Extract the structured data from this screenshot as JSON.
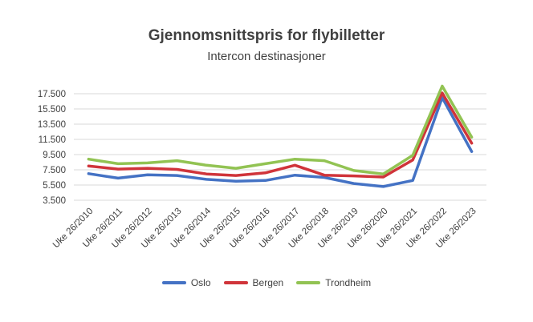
{
  "chart_data": {
    "type": "line",
    "title": "Gjennomsnittspris for flybilletter",
    "subtitle": "Intercon destinasjoner",
    "categories": [
      "Uke 26/2010",
      "Uke 26/2011",
      "Uke 26/2012",
      "Uke 26/2013",
      "Uke 26/2014",
      "Uke 26/2015",
      "Uke 26/2016",
      "Uke 26/2017",
      "Uke 26/2018",
      "Uke 26/2019",
      "Uke 26/2020",
      "Uke 26/2021",
      "Uke 26/2022",
      "Uke 26/2023"
    ],
    "yticks": [
      "3.500",
      "5.500",
      "7.500",
      "9.500",
      "11.500",
      "13.500",
      "15.500",
      "17.500"
    ],
    "ylim": [
      3500,
      17500
    ],
    "grid": true,
    "legend_position": "bottom",
    "series": [
      {
        "name": "Oslo",
        "color": "#4472C4",
        "values": [
          7000,
          6400,
          6850,
          6750,
          6250,
          6000,
          6100,
          6800,
          6500,
          5700,
          5300,
          6100,
          17000,
          9900
        ]
      },
      {
        "name": "Bergen",
        "color": "#D0343A",
        "values": [
          8000,
          7600,
          7700,
          7550,
          6950,
          6750,
          7100,
          8100,
          6800,
          6700,
          6550,
          8800,
          17600,
          11000
        ]
      },
      {
        "name": "Trondheim",
        "color": "#92C353",
        "values": [
          8900,
          8300,
          8400,
          8700,
          8100,
          7700,
          8300,
          8900,
          8700,
          7400,
          6950,
          9400,
          18500,
          11800
        ]
      }
    ]
  }
}
